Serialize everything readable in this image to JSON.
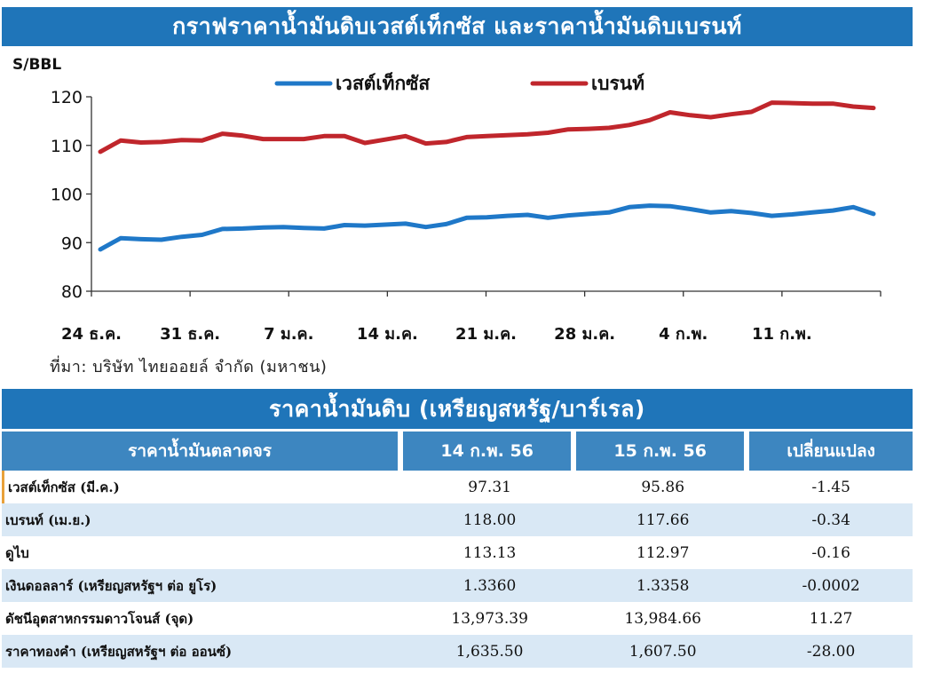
{
  "chart_data": {
    "type": "line",
    "title": "กราฟราคาน้ำมันดิบเวสต์เท็กซัส และราคาน้ำมันดิบเบรนท์",
    "ylabel": "S/BBL",
    "ylim": [
      80,
      120
    ],
    "yticks": [
      "80",
      "90",
      "100",
      "110",
      "120"
    ],
    "xticks": [
      "24 ธ.ค.",
      "31 ธ.ค.",
      "7 ม.ค.",
      "14 ม.ค.",
      "21 ม.ค.",
      "28 ม.ค.",
      "4 ก.พ.",
      "11 ก.พ."
    ],
    "legend_position": "top",
    "grid": false,
    "series": [
      {
        "name": "เวสต์เท็กซัส",
        "color": "#1f78c8",
        "values": [
          88.6,
          90.9,
          90.7,
          90.6,
          91.2,
          91.6,
          92.8,
          92.9,
          93.1,
          93.2,
          93.0,
          92.9,
          93.6,
          93.5,
          93.7,
          93.9,
          93.2,
          93.8,
          95.1,
          95.2,
          95.5,
          95.7,
          95.1,
          95.6,
          95.9,
          96.2,
          97.3,
          97.6,
          97.5,
          96.9,
          96.2,
          96.5,
          96.1,
          95.5,
          95.8,
          96.2,
          96.6,
          97.3,
          95.9
        ]
      },
      {
        "name": "เบรนท์",
        "color": "#c0262c",
        "values": [
          108.7,
          111.0,
          110.6,
          110.7,
          111.1,
          111.0,
          112.4,
          112.0,
          111.3,
          111.3,
          111.3,
          111.9,
          111.9,
          110.5,
          111.2,
          111.9,
          110.4,
          110.7,
          111.7,
          111.9,
          112.1,
          112.3,
          112.6,
          113.3,
          113.4,
          113.6,
          114.2,
          115.2,
          116.8,
          116.2,
          115.8,
          116.4,
          116.9,
          118.8,
          118.7,
          118.6,
          118.6,
          118.0,
          117.7
        ]
      }
    ]
  },
  "source": "ที่มา: บริษัท ไทยออยล์ จำกัด (มหาชน)",
  "table": {
    "title": "ราคาน้ำมันดิบ (เหรียญสหรัฐ/บาร์เรล)",
    "headers": [
      "ราคาน้ำมันตลาดจร",
      "14 ก.พ. 56",
      "15 ก.พ. 56",
      "เปลี่ยนแปลง"
    ],
    "rows": [
      {
        "label": "เวสต์เท็กซัส (มี.ค.)",
        "v1": "97.31",
        "v2": "95.86",
        "change": "-1.45"
      },
      {
        "label": "เบรนท์ (เม.ย.)",
        "v1": "118.00",
        "v2": "117.66",
        "change": "-0.34"
      },
      {
        "label": "ดูไบ",
        "v1": "113.13",
        "v2": "112.97",
        "change": "-0.16"
      },
      {
        "label": "เงินดอลลาร์ (เหรียญสหรัฐฯ ต่อ ยูโร)",
        "v1": "1.3360",
        "v2": "1.3358",
        "change": "-0.0002"
      },
      {
        "label": "ดัชนีอุตสาหกรรมดาวโจนส์ (จุด)",
        "v1": "13,973.39",
        "v2": "13,984.66",
        "change": "11.27"
      },
      {
        "label": "ราคาทองคำ (เหรียญสหรัฐฯ ต่อ ออนซ์)",
        "v1": "1,635.50",
        "v2": "1,607.50",
        "change": "-28.00"
      }
    ]
  }
}
